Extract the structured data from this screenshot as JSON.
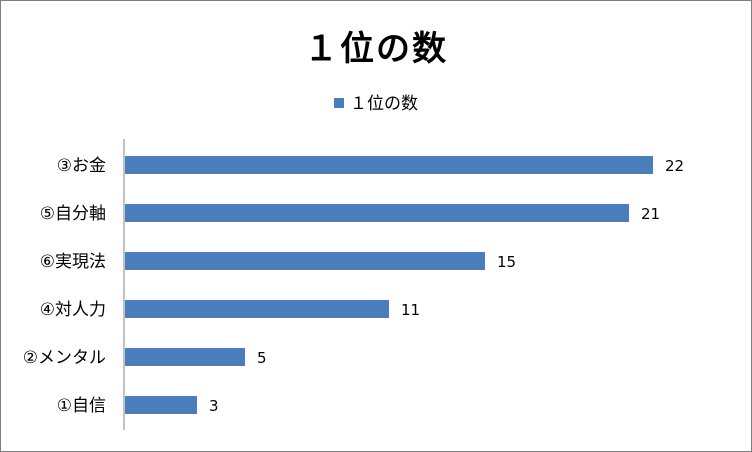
{
  "chart_data": {
    "type": "bar",
    "orientation": "horizontal",
    "title": "１位の数",
    "categories": [
      "③お金",
      "⑤自分軸",
      "⑥実現法",
      "④対人力",
      "②メンタル",
      "①自信"
    ],
    "series": [
      {
        "name": "１位の数",
        "values": [
          22,
          21,
          15,
          11,
          5,
          3
        ],
        "color": "#4a7ebb"
      }
    ],
    "xlim": [
      0,
      24
    ],
    "grid": false,
    "legend_position": "top",
    "data_labels": true
  }
}
